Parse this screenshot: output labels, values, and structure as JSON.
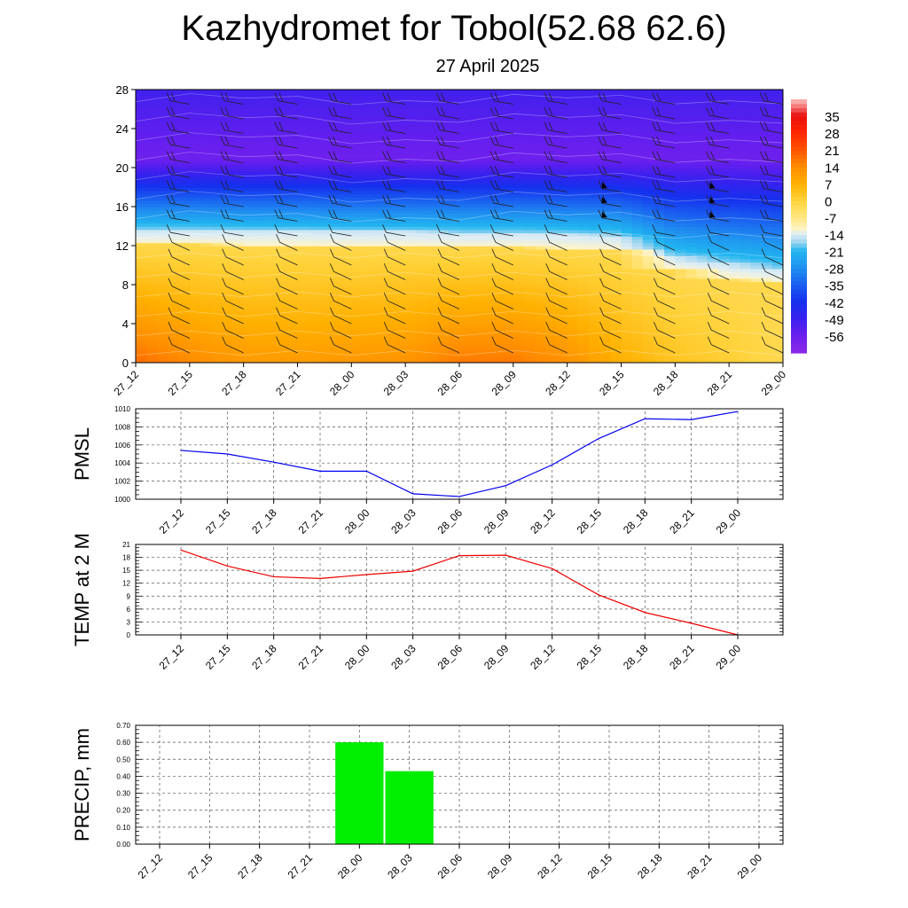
{
  "header": {
    "title": "Kazhydromet for Tobol(52.68 62.6)",
    "subtitle": "27 April 2025"
  },
  "chart_data": [
    {
      "type": "heatmap",
      "xlabel": "",
      "ylabel": "",
      "x_ticks": [
        "27_12",
        "27_15",
        "27_18",
        "27_21",
        "28_00",
        "28_03",
        "28_06",
        "28_09",
        "28_12",
        "28_15",
        "28_18",
        "28_21",
        "29_00"
      ],
      "y_ticks": [
        0,
        4,
        8,
        12,
        16,
        20,
        24,
        28
      ],
      "ylim": [
        0,
        28
      ],
      "colorbar_labels": [
        35,
        28,
        21,
        14,
        7,
        0,
        -7,
        -14,
        -21,
        -28,
        -35,
        -42,
        -49,
        -56
      ],
      "colorbar_range": [
        -63,
        42
      ],
      "freezing_level": [
        12.2,
        12.2,
        12.1,
        12.1,
        12.0,
        12.0,
        11.9,
        11.9,
        11.8,
        11.6,
        9.5,
        8.8,
        8.2
      ],
      "temperature_profile": {
        "levels": [
          0,
          4,
          8,
          12,
          16,
          20,
          24,
          28
        ],
        "surface_by_time": [
          19.7,
          16.0,
          13.5,
          13.1,
          14.0,
          14.8,
          18.4,
          18.5,
          15.4,
          9.3,
          5.2,
          2.7,
          0.0
        ],
        "cold_core_level": 21,
        "cold_core_temperature": -57,
        "top_temperature": -50
      },
      "wind_barbs": true,
      "colors": {
        "red": "#ff2600",
        "orange": "#ff8c00",
        "yellow": "#ffe680",
        "light_blue": "#a8d8f0",
        "cyan": "#21b6f0",
        "blue": "#1530ee",
        "violet": "#8a2ae8"
      }
    },
    {
      "type": "line",
      "ylabel": "PMSL",
      "categories": [
        "27_12",
        "27_15",
        "27_18",
        "27_21",
        "28_00",
        "28_03",
        "28_06",
        "28_09",
        "28_12",
        "28_15",
        "28_18",
        "28_21",
        "29_00"
      ],
      "values": [
        1005.4,
        1005.0,
        1004.1,
        1003.1,
        1003.1,
        1000.6,
        1000.3,
        1001.5,
        1003.8,
        1006.7,
        1008.9,
        1008.8,
        1009.7
      ],
      "ylim": [
        1000,
        1010
      ],
      "y_ticks": [
        1000,
        1002,
        1004,
        1006,
        1008,
        1010
      ],
      "color": "#0000ee",
      "grid": true
    },
    {
      "type": "line",
      "ylabel": "TEMP at 2 M",
      "categories": [
        "27_12",
        "27_15",
        "27_18",
        "27_21",
        "28_00",
        "28_03",
        "28_06",
        "28_09",
        "28_12",
        "28_15",
        "28_18",
        "28_21",
        "29_00"
      ],
      "values": [
        19.7,
        16.0,
        13.5,
        13.1,
        14.0,
        14.8,
        18.4,
        18.5,
        15.4,
        9.3,
        5.2,
        2.7,
        0.0
      ],
      "ylim": [
        0,
        21
      ],
      "y_ticks": [
        0,
        3,
        6,
        9,
        12,
        15,
        18,
        21
      ],
      "color": "#ee0000",
      "grid": true
    },
    {
      "type": "bar",
      "ylabel": "PRECIP, mm",
      "categories": [
        "27_12",
        "27_15",
        "27_18",
        "27_21",
        "28_00",
        "28_03",
        "28_06",
        "28_09",
        "28_12",
        "28_15",
        "28_18",
        "28_21",
        "29_00"
      ],
      "values": [
        0,
        0,
        0,
        0,
        0.6,
        0.43,
        0,
        0,
        0,
        0,
        0,
        0,
        0
      ],
      "ylim": [
        0,
        0.7
      ],
      "y_ticks": [
        "0.00",
        "0.10",
        "0.20",
        "0.30",
        "0.40",
        "0.50",
        "0.60",
        "0.70"
      ],
      "color": "#00ee00",
      "grid": true
    }
  ]
}
